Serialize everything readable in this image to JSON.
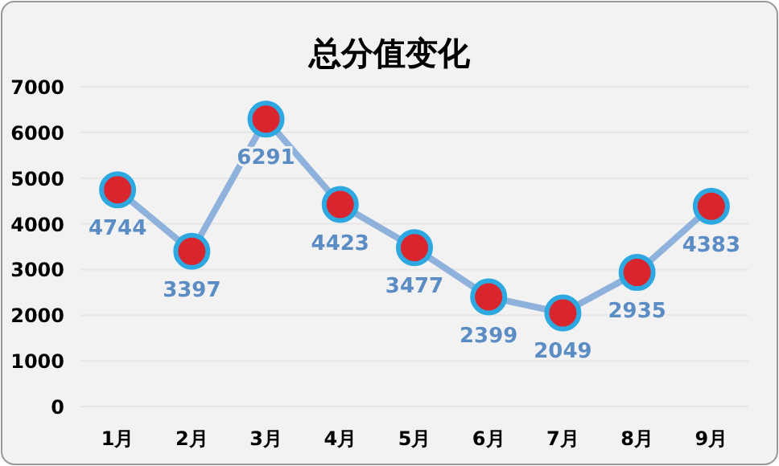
{
  "chart_data": {
    "type": "line",
    "title": "总分值变化",
    "categories": [
      "1月",
      "2月",
      "3月",
      "4月",
      "5月",
      "6月",
      "7月",
      "8月",
      "9月"
    ],
    "series": [
      {
        "color": "#8eb2dc",
        "values": [
          4744,
          3397,
          6291,
          4423,
          3477,
          2399,
          2049,
          2935,
          4383
        ]
      }
    ],
    "ylim": [
      0,
      7000
    ],
    "yticks": [
      0,
      1000,
      2000,
      3000,
      4000,
      5000,
      6000,
      7000
    ],
    "grid": "y",
    "marker": "circle",
    "line_style": "solid",
    "data_labels": true
  }
}
